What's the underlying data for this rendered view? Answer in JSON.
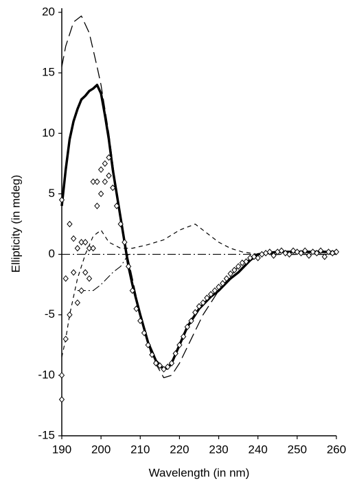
{
  "chart_data": {
    "type": "line",
    "x_label": "Wavelength (in nm)",
    "y_label": "Ellipticity (in mdeg)",
    "xlim": [
      190,
      260
    ],
    "ylim": [
      -15,
      20
    ],
    "xticks": [
      190,
      200,
      210,
      220,
      230,
      240,
      250,
      260
    ],
    "yticks": [
      -15,
      -10,
      -5,
      0,
      5,
      10,
      15,
      20
    ],
    "series": [
      {
        "type": "line",
        "dash": "solid",
        "width": 3.5,
        "color": "#000000",
        "x": [
          190,
          191,
          192,
          193,
          194,
          195,
          196,
          197,
          198,
          199,
          200,
          201,
          202,
          203,
          204,
          205,
          206,
          207,
          208,
          210,
          212,
          214,
          216,
          217,
          218,
          220,
          222,
          225,
          228,
          230,
          233,
          235,
          238,
          240,
          245,
          250,
          255,
          260
        ],
        "values": [
          4,
          7,
          9.5,
          11,
          12,
          12.8,
          13.1,
          13.5,
          13.7,
          14,
          13.3,
          11.5,
          9.5,
          7,
          5,
          3,
          1,
          -1,
          -2.5,
          -5,
          -7.3,
          -8.8,
          -9.5,
          -9.4,
          -9,
          -7.5,
          -6,
          -4.5,
          -3.5,
          -3,
          -2,
          -1.5,
          -0.5,
          0,
          0.2,
          0.2,
          0.2,
          0.2
        ]
      },
      {
        "type": "line",
        "dash": "long",
        "width": 1.3,
        "color": "#000000",
        "x": [
          190,
          191,
          193,
          195,
          197,
          199,
          200,
          202,
          204,
          206,
          208,
          210,
          213,
          216,
          218,
          220,
          223,
          226,
          230,
          235,
          240,
          250,
          260
        ],
        "values": [
          15.5,
          17.2,
          19.2,
          19.7,
          18.3,
          15.5,
          14,
          10,
          5,
          1,
          -2,
          -5,
          -8.5,
          -10.2,
          -10,
          -9,
          -7,
          -5,
          -3,
          -1,
          0,
          0,
          0
        ]
      },
      {
        "type": "line",
        "dash": "short",
        "width": 1.2,
        "color": "#000000",
        "x": [
          190,
          191,
          192,
          193,
          194,
          195,
          196,
          198,
          200,
          202,
          205,
          208,
          212,
          216,
          220,
          224,
          226,
          230,
          233,
          236,
          240,
          250,
          260
        ],
        "values": [
          -8.5,
          -7,
          -5,
          -3.5,
          -2,
          -1,
          0,
          1.5,
          2,
          1,
          0.5,
          0.5,
          0.8,
          1.2,
          2,
          2.5,
          2,
          1,
          0.5,
          0.2,
          0,
          0,
          0
        ]
      },
      {
        "type": "line",
        "dash": "dashdot",
        "width": 1.1,
        "color": "#000000",
        "x": [
          194,
          196,
          198,
          200,
          203,
          205,
          207,
          210
        ],
        "values": [
          -3,
          -3,
          -3,
          -2.5,
          -1.5,
          -1,
          0,
          0
        ]
      },
      {
        "type": "line",
        "dash": "dashdot",
        "width": 1.1,
        "color": "#000000",
        "x": [
          190,
          260
        ],
        "values": [
          0,
          0
        ]
      },
      {
        "type": "scatter",
        "marker": "diamond",
        "color": "#000000",
        "x": [
          190,
          190,
          190,
          191,
          191,
          192,
          192,
          193,
          193,
          194,
          194,
          195,
          195,
          196,
          196,
          197,
          197,
          198,
          198,
          199,
          199,
          200,
          200,
          201,
          201,
          202,
          202,
          203,
          204,
          205,
          206,
          207,
          208,
          209,
          210,
          211,
          212,
          213,
          214,
          215,
          216,
          217,
          218,
          219,
          220,
          221,
          222,
          223,
          224,
          225,
          226,
          227,
          228,
          229,
          230,
          231,
          232,
          233,
          234,
          235,
          236,
          237,
          238,
          239,
          240,
          241,
          242,
          243,
          244,
          245,
          246,
          247,
          248,
          249,
          250,
          251,
          252,
          253,
          254,
          255,
          256,
          257,
          258,
          259,
          260
        ],
        "values": [
          -10,
          -12,
          4.5,
          -7,
          -2,
          2.5,
          -5,
          -1.5,
          1.3,
          -4,
          0.5,
          -3,
          1,
          -1.5,
          1,
          -2,
          0.5,
          6,
          0.5,
          6,
          4,
          7,
          5,
          7.5,
          6,
          8,
          6.5,
          5.5,
          4,
          2.5,
          1,
          -1,
          -3,
          -4.5,
          -5.5,
          -6.5,
          -7.5,
          -8.3,
          -9,
          -9.2,
          -9.5,
          -9.3,
          -9,
          -8.2,
          -7.5,
          -6.8,
          -6,
          -5.5,
          -4.8,
          -4.3,
          -4,
          -3.6,
          -3.3,
          -3,
          -2.7,
          -2.4,
          -2,
          -1.6,
          -1.3,
          -1,
          -0.7,
          -0.6,
          -0.3,
          -0.2,
          -0.3,
          0,
          0.1,
          0.2,
          -0.1,
          0.2,
          0.3,
          0.1,
          0,
          0.3,
          0.2,
          0.1,
          0.3,
          -0.1,
          0.2,
          0.1,
          0.3,
          -0.2,
          0.2,
          0.1,
          0.2
        ]
      }
    ]
  }
}
